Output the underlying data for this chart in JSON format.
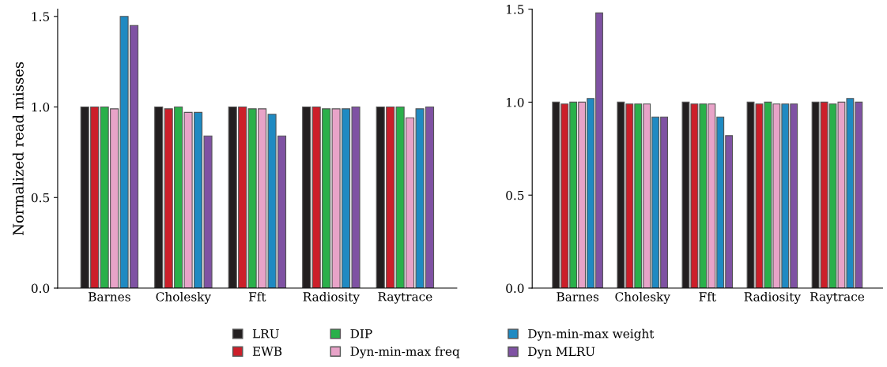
{
  "chart_data": [
    {
      "type": "bar",
      "ylabel": "Normalized read misses",
      "categories": [
        "Barnes",
        "Cholesky",
        "Fft",
        "Radiosity",
        "Raytrace"
      ],
      "ylim": [
        0,
        1.54
      ],
      "yticks": [
        {
          "value": 0,
          "label": "0.0"
        },
        {
          "value": 0.5,
          "label": "0.5"
        },
        {
          "value": 1,
          "label": "1.0"
        },
        {
          "value": 1.5,
          "label": "1.5"
        }
      ],
      "grid": false,
      "legend": "bottom",
      "series": [
        {
          "name": "LRU",
          "color": "#231f20",
          "values": [
            1,
            1,
            1,
            1,
            1
          ]
        },
        {
          "name": "EWB",
          "color": "#cc1f2a",
          "values": [
            1,
            0.99,
            1,
            1,
            1
          ]
        },
        {
          "name": "DIP",
          "color": "#2ab04a",
          "values": [
            1,
            1,
            0.99,
            0.99,
            1
          ]
        },
        {
          "name": "Dyn-min-max freq",
          "color": "#e8a3c8",
          "values": [
            0.99,
            0.97,
            0.99,
            0.99,
            0.94
          ]
        },
        {
          "name": "Dyn-min-max weight",
          "color": "#1f8ac2",
          "values": [
            1.5,
            0.97,
            0.96,
            0.99,
            0.99
          ]
        },
        {
          "name": "Dyn MLRU",
          "color": "#7f52a3",
          "values": [
            1.45,
            0.84,
            0.84,
            1,
            1
          ]
        }
      ]
    },
    {
      "type": "bar",
      "categories": [
        "Barnes",
        "Cholesky",
        "Fft",
        "Radiosity",
        "Raytrace"
      ],
      "ylim": [
        0,
        1.5
      ],
      "yticks": [
        {
          "value": 0,
          "label": "0.0"
        },
        {
          "value": 0.5,
          "label": "0.5"
        },
        {
          "value": 1,
          "label": "1.0"
        },
        {
          "value": 1.5,
          "label": "1.5"
        }
      ],
      "grid": false,
      "series": [
        {
          "color": "#231f20",
          "values": [
            1,
            1,
            1,
            1,
            1
          ]
        },
        {
          "color": "#cc1f2a",
          "values": [
            0.99,
            0.99,
            0.99,
            0.99,
            1
          ]
        },
        {
          "color": "#2ab04a",
          "values": [
            1,
            0.99,
            0.99,
            1,
            0.99
          ]
        },
        {
          "color": "#e8a3c8",
          "values": [
            1,
            0.99,
            0.99,
            0.99,
            1
          ]
        },
        {
          "color": "#1f8ac2",
          "values": [
            1.02,
            0.92,
            0.92,
            0.99,
            1.02
          ]
        },
        {
          "color": "#7f52a3",
          "values": [
            1.48,
            0.92,
            0.82,
            0.99,
            1
          ]
        }
      ]
    }
  ]
}
